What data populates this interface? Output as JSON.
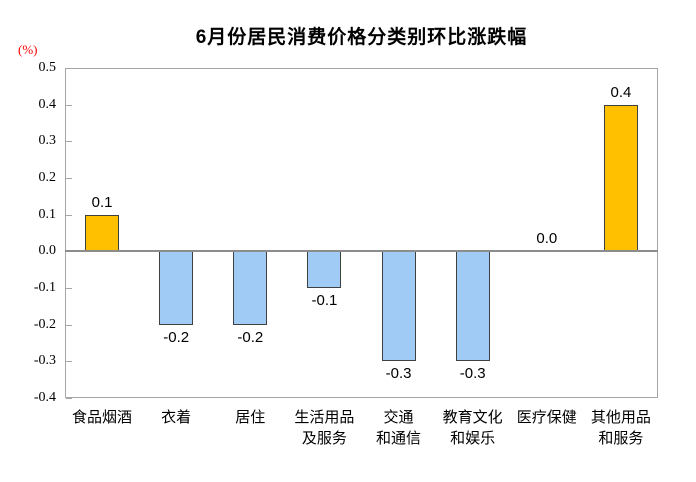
{
  "page": {
    "background": "#ffffff"
  },
  "chart_data": {
    "type": "bar",
    "title": "6月份居民消费价格分类别环比涨跌幅",
    "unit_label": "(%)",
    "categories": [
      "食品烟酒",
      "衣着",
      "居住",
      "生活用品及服务",
      "交通和通信",
      "教育文化和娱乐",
      "医疗保健",
      "其他用品和服务"
    ],
    "category_lines": [
      [
        "食品烟酒"
      ],
      [
        "衣着"
      ],
      [
        "居住"
      ],
      [
        "生活用品",
        "及服务"
      ],
      [
        "交通",
        "和通信"
      ],
      [
        "教育文化",
        "和娱乐"
      ],
      [
        "医疗保健"
      ],
      [
        "其他用品",
        "和服务"
      ]
    ],
    "values": [
      0.1,
      -0.2,
      -0.2,
      -0.1,
      -0.3,
      -0.3,
      0.0,
      0.4
    ],
    "value_labels": [
      "0.1",
      "-0.2",
      "-0.2",
      "-0.1",
      "-0.3",
      "-0.3",
      "0.0",
      "0.4"
    ],
    "ylim": [
      -0.4,
      0.5
    ],
    "ytick_step": 0.1,
    "ytick_labels": [
      "0.5",
      "0.4",
      "0.3",
      "0.2",
      "0.1",
      "0.0",
      "-0.1",
      "-0.2",
      "-0.3",
      "-0.4"
    ],
    "grid": "off",
    "legend": "none",
    "colors": {
      "positive_bar": "#FFC000",
      "negative_bar": "#A0CBF4",
      "bar_border": "#404040",
      "axis_frame": "#A6A6A6",
      "zero_line": "#8C8C8C",
      "unit_label": "#FF0000",
      "text": "#000000"
    }
  }
}
